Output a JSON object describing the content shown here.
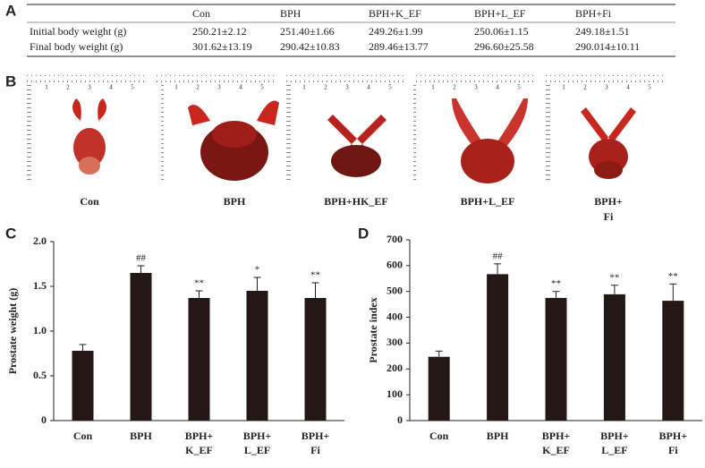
{
  "panel_labels": [
    "A",
    "B",
    "C",
    "D"
  ],
  "table": {
    "columns": [
      "Con",
      "BPH",
      "BPH+K_EF",
      "BPH+L_EF",
      "BPH+Fi"
    ],
    "rows": [
      {
        "label": "Initial body weight (g)",
        "cells": [
          "250.21±2.12",
          "251.40±1.66",
          "249.26±1.99",
          "250.06±1.15",
          "249.18±1.51"
        ]
      },
      {
        "label": "Final body weight (g)",
        "cells": [
          "301.62±13.19",
          "290.42±10.83",
          "289.46±13.77",
          "296.60±25.58",
          "290.014±10.11"
        ]
      }
    ]
  },
  "photos": {
    "ruler_numbers": [
      "1",
      "2",
      "3",
      "4",
      "5"
    ],
    "labels": [
      [
        "Con"
      ],
      [
        "BPH"
      ],
      [
        "BPH+HK_EF"
      ],
      [
        "BPH+L_EF"
      ],
      [
        "BPH+",
        "Fi"
      ]
    ]
  },
  "chart_data": [
    {
      "type": "bar",
      "y_label": "Prostate weight (g)",
      "categories": [
        [
          "Con"
        ],
        [
          "BPH"
        ],
        [
          "BPH+",
          "K_EF"
        ],
        [
          "BPH+",
          "L_EF"
        ],
        [
          "BPH+",
          "Fi"
        ]
      ],
      "values": [
        0.78,
        1.65,
        1.37,
        1.45,
        1.37
      ],
      "errors": [
        0.07,
        0.08,
        0.08,
        0.15,
        0.17
      ],
      "annotations": [
        null,
        "##",
        "**",
        "*",
        "**"
      ],
      "color": "#231815",
      "ylim": [
        0,
        2
      ],
      "yticks": [
        0,
        0.5,
        {
          "value": 1,
          "label": "1.0"
        },
        1.5,
        {
          "value": 2,
          "label": "2.0"
        }
      ]
    },
    {
      "type": "bar",
      "y_label": "Prostate index",
      "categories": [
        [
          "Con"
        ],
        [
          "BPH"
        ],
        [
          "BPH+",
          "K_EF"
        ],
        [
          "BPH+",
          "L_EF"
        ],
        [
          "BPH+",
          "Fi"
        ]
      ],
      "values": [
        247,
        567,
        475,
        489,
        464
      ],
      "errors": [
        22,
        40,
        25,
        35,
        65
      ],
      "annotations": [
        null,
        "##",
        "**",
        "**",
        "**"
      ],
      "color": "#231815",
      "ylim": [
        0,
        700
      ],
      "yticks": [
        0,
        100,
        200,
        300,
        400,
        500,
        600,
        700
      ]
    }
  ]
}
